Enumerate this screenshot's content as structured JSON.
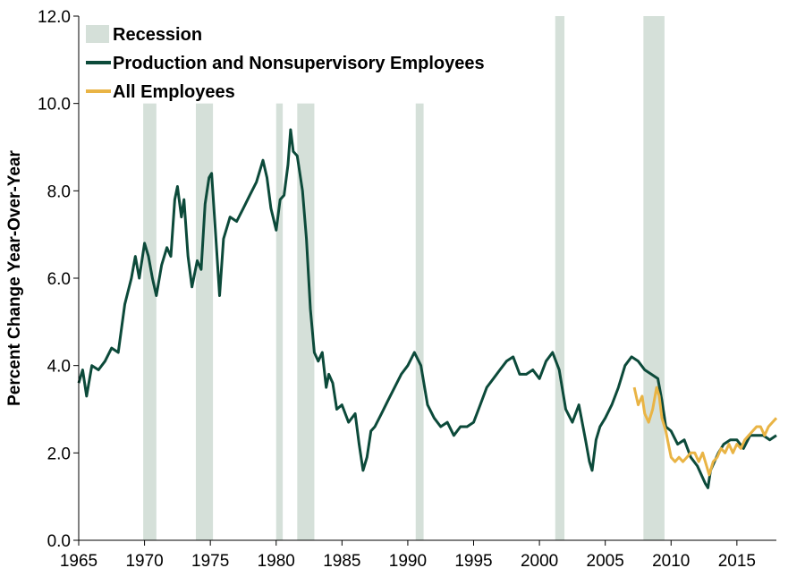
{
  "chart_data": {
    "type": "line",
    "ylabel": "Percent Change Year-Over-Year",
    "xlim": [
      1965,
      2018
    ],
    "ylim": [
      0,
      12
    ],
    "xticks": [
      1965,
      1970,
      1975,
      1980,
      1985,
      1990,
      1995,
      2000,
      2005,
      2010,
      2015
    ],
    "yticks": [
      "0.0",
      "2.0",
      "4.0",
      "6.0",
      "8.0",
      "10.0",
      "12.0"
    ],
    "grid": false,
    "legend_position": "top-left",
    "recession_color": "#d5e0d9",
    "recessions": [
      {
        "name": "Recession",
        "start": 1969.9,
        "end": 1970.9,
        "top": 10.0
      },
      {
        "name": "Recession",
        "start": 1973.9,
        "end": 1975.2,
        "top": 10.0
      },
      {
        "name": "Recession",
        "start": 1980.0,
        "end": 1980.5,
        "top": 10.0
      },
      {
        "name": "Recession",
        "start": 1981.6,
        "end": 1982.9,
        "top": 10.0
      },
      {
        "name": "Recession",
        "start": 1990.6,
        "end": 1991.2,
        "top": 10.0
      },
      {
        "name": "Recession",
        "start": 2001.2,
        "end": 2001.9,
        "top": 12.0
      },
      {
        "name": "Recession",
        "start": 2007.9,
        "end": 2009.5,
        "top": 12.0
      }
    ],
    "series": [
      {
        "name": "Production and Nonsupervisory Employees",
        "color": "#0c4a3a",
        "x": [
          1965.0,
          1965.3,
          1965.6,
          1966.0,
          1966.5,
          1967.0,
          1967.5,
          1968.0,
          1968.5,
          1969.0,
          1969.3,
          1969.6,
          1970.0,
          1970.3,
          1970.6,
          1970.9,
          1971.3,
          1971.7,
          1972.0,
          1972.3,
          1972.5,
          1972.8,
          1973.0,
          1973.3,
          1973.6,
          1974.0,
          1974.3,
          1974.6,
          1974.9,
          1975.1,
          1975.4,
          1975.7,
          1976.0,
          1976.5,
          1977.0,
          1977.5,
          1978.0,
          1978.5,
          1979.0,
          1979.3,
          1979.6,
          1980.0,
          1980.3,
          1980.6,
          1980.9,
          1981.1,
          1981.3,
          1981.6,
          1982.0,
          1982.3,
          1982.6,
          1982.9,
          1983.2,
          1983.5,
          1983.8,
          1984.0,
          1984.3,
          1984.6,
          1985.0,
          1985.5,
          1986.0,
          1986.3,
          1986.6,
          1986.9,
          1987.2,
          1987.5,
          1988.0,
          1988.5,
          1989.0,
          1989.5,
          1990.0,
          1990.5,
          1991.0,
          1991.5,
          1992.0,
          1992.5,
          1993.0,
          1993.5,
          1994.0,
          1994.5,
          1995.0,
          1995.5,
          1996.0,
          1996.5,
          1997.0,
          1997.5,
          1998.0,
          1998.5,
          1999.0,
          1999.5,
          2000.0,
          2000.5,
          2001.0,
          2001.5,
          2002.0,
          2002.5,
          2003.0,
          2003.5,
          2003.8,
          2004.0,
          2004.3,
          2004.6,
          2005.0,
          2005.5,
          2006.0,
          2006.5,
          2007.0,
          2007.5,
          2008.0,
          2008.5,
          2009.0,
          2009.3,
          2009.6,
          2010.0,
          2010.5,
          2011.0,
          2011.5,
          2012.0,
          2012.3,
          2012.6,
          2012.8,
          2013.0,
          2013.3,
          2013.6,
          2014.0,
          2014.5,
          2015.0,
          2015.5,
          2016.0,
          2016.5,
          2017.0,
          2017.5,
          2018.0
        ],
        "values": [
          3.6,
          3.9,
          3.3,
          4.0,
          3.9,
          4.1,
          4.4,
          4.3,
          5.4,
          6.0,
          6.5,
          6.0,
          6.8,
          6.5,
          6.0,
          5.6,
          6.3,
          6.7,
          6.5,
          7.8,
          8.1,
          7.4,
          7.8,
          6.5,
          5.8,
          6.4,
          6.2,
          7.7,
          8.3,
          8.4,
          7.0,
          5.6,
          6.9,
          7.4,
          7.3,
          7.6,
          7.9,
          8.2,
          8.7,
          8.3,
          7.6,
          7.1,
          7.8,
          7.9,
          8.6,
          9.4,
          8.9,
          8.8,
          8.0,
          6.9,
          5.3,
          4.3,
          4.1,
          4.3,
          3.5,
          3.8,
          3.6,
          3.0,
          3.1,
          2.7,
          2.9,
          2.2,
          1.6,
          1.9,
          2.5,
          2.6,
          2.9,
          3.2,
          3.5,
          3.8,
          4.0,
          4.3,
          4.0,
          3.1,
          2.8,
          2.6,
          2.7,
          2.4,
          2.6,
          2.6,
          2.7,
          3.1,
          3.5,
          3.7,
          3.9,
          4.1,
          4.2,
          3.8,
          3.8,
          3.9,
          3.7,
          4.1,
          4.3,
          3.9,
          3.0,
          2.7,
          3.1,
          2.3,
          1.8,
          1.6,
          2.3,
          2.6,
          2.8,
          3.1,
          3.5,
          4.0,
          4.2,
          4.1,
          3.9,
          3.8,
          3.7,
          3.2,
          2.6,
          2.5,
          2.2,
          2.3,
          1.9,
          1.7,
          1.5,
          1.3,
          1.2,
          1.6,
          1.8,
          2.0,
          2.2,
          2.3,
          2.3,
          2.1,
          2.4,
          2.4,
          2.4,
          2.3,
          2.4
        ]
      },
      {
        "name": "All Employees",
        "color": "#e9b445",
        "x": [
          2007.2,
          2007.5,
          2007.8,
          2008.0,
          2008.3,
          2008.6,
          2008.9,
          2009.1,
          2009.3,
          2009.6,
          2009.8,
          2010.0,
          2010.3,
          2010.6,
          2010.9,
          2011.2,
          2011.5,
          2011.8,
          2012.1,
          2012.4,
          2012.7,
          2012.9,
          2013.2,
          2013.5,
          2013.8,
          2014.1,
          2014.4,
          2014.7,
          2015.0,
          2015.3,
          2015.6,
          2015.9,
          2016.2,
          2016.5,
          2016.8,
          2017.1,
          2017.4,
          2017.7,
          2018.0
        ],
        "values": [
          3.5,
          3.1,
          3.3,
          2.9,
          2.7,
          3.0,
          3.5,
          3.3,
          2.8,
          2.5,
          2.2,
          1.9,
          1.8,
          1.9,
          1.8,
          1.9,
          2.0,
          2.0,
          1.8,
          2.0,
          1.7,
          1.5,
          1.8,
          1.9,
          2.1,
          2.0,
          2.2,
          2.0,
          2.2,
          2.1,
          2.3,
          2.4,
          2.5,
          2.6,
          2.6,
          2.4,
          2.6,
          2.7,
          2.8
        ]
      }
    ],
    "legend": [
      {
        "label": "Recession",
        "kind": "swatch",
        "color": "#d5e0d9"
      },
      {
        "label": "Production and Nonsupervisory Employees",
        "kind": "line",
        "color": "#0c4a3a"
      },
      {
        "label": "All Employees",
        "kind": "line",
        "color": "#e9b445"
      }
    ]
  }
}
